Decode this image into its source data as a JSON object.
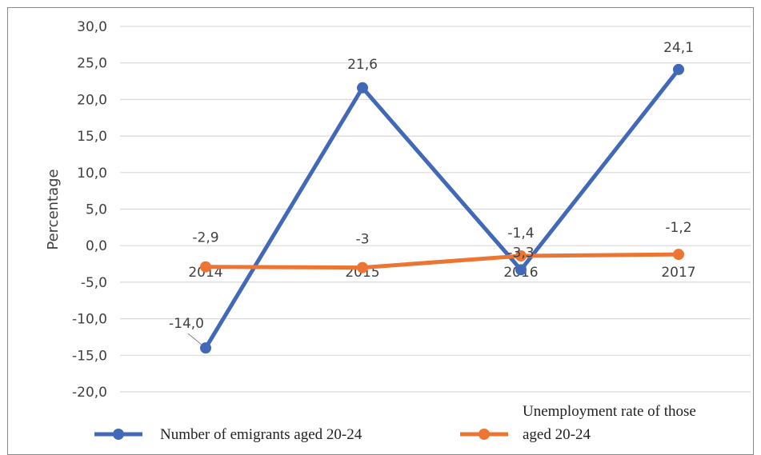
{
  "chart_data": {
    "type": "line",
    "categories": [
      "2014",
      "2015",
      "2016",
      "2017"
    ],
    "series": [
      {
        "name": "Number of emigrants aged 20-24",
        "values": [
          -14.0,
          21.6,
          -3.3,
          24.1
        ],
        "labels": [
          "-14,0",
          "21,6",
          "-3,3",
          "24,1"
        ],
        "color": "#4169b8"
      },
      {
        "name": "Unemployment rate of those aged 20-24",
        "values": [
          -2.9,
          -3.0,
          -1.4,
          -1.2
        ],
        "labels": [
          "-2,9",
          "-3",
          "-1,4",
          "-1,2"
        ],
        "color": "#ec7533"
      }
    ],
    "ylabel": "Percentage",
    "ylim": [
      -20,
      30
    ],
    "yticks": [
      30,
      25,
      20,
      15,
      10,
      5,
      0,
      -5,
      -10,
      -15,
      -20
    ],
    "ytick_labels": [
      "30,0",
      "25,0",
      "20,0",
      "15,0",
      "10,0",
      "5,0",
      "0,0",
      "-5,0",
      "-10,0",
      "-15,0",
      "-20,0"
    ],
    "grid": true,
    "legend": {
      "position": "bottom",
      "items": [
        {
          "label": "Number of emigrants aged 20-24",
          "lines": [
            "Number of emigrants aged 20-24"
          ]
        },
        {
          "label": "Unemployment rate of those aged 20-24",
          "lines": [
            "Unemployment rate of those",
            "aged 20-24"
          ]
        }
      ]
    }
  }
}
